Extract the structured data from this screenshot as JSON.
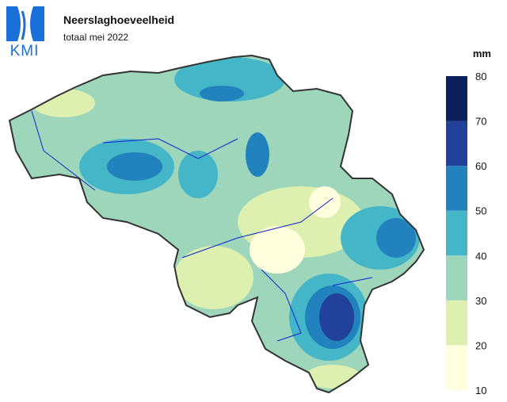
{
  "logo": {
    "text": "KMI"
  },
  "header": {
    "title": "Neerslaghoeveelheid",
    "subtitle": "totaal mei 2022"
  },
  "legend": {
    "unit": "mm",
    "ticks": [
      10,
      20,
      30,
      40,
      50,
      60,
      70,
      80
    ],
    "colors": [
      "#ffffdd",
      "#ddf0b0",
      "#9dd6bb",
      "#45b6c8",
      "#2282bd",
      "#22419a",
      "#0b1f5c"
    ]
  }
}
